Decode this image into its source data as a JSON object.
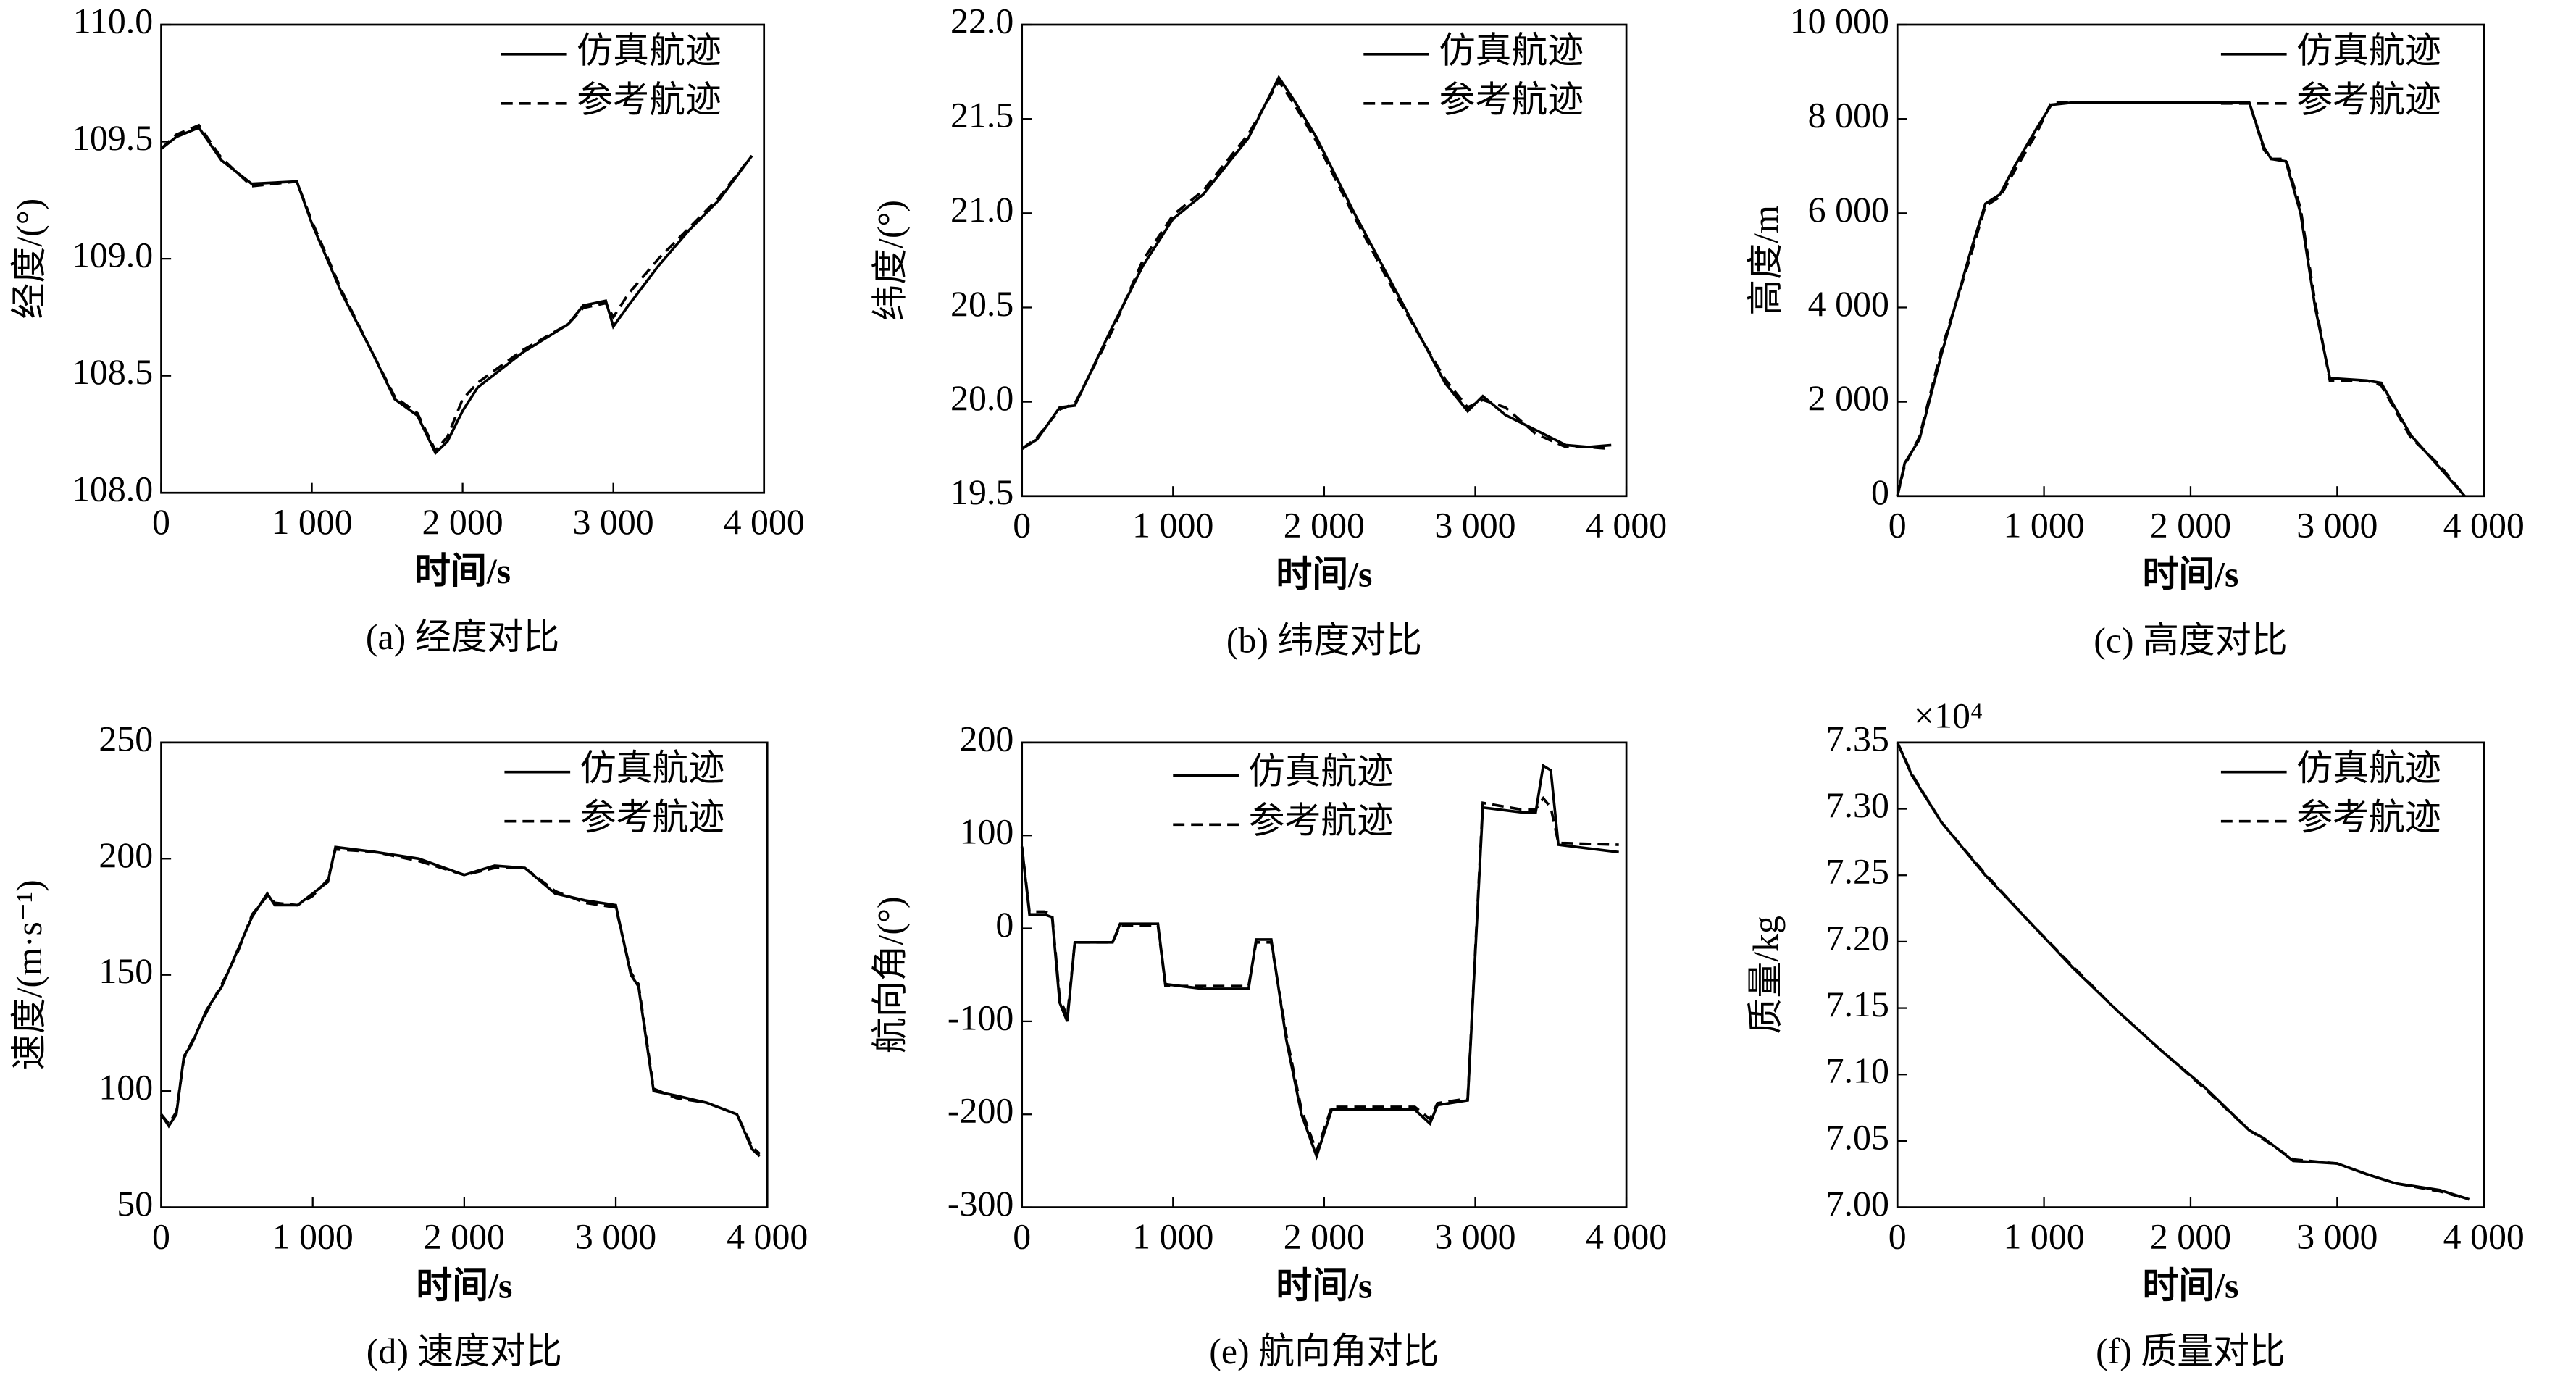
{
  "chart_data": [
    {
      "type": "line",
      "title": "(a) 经度对比",
      "xlabel": "时间/s",
      "ylabel": "经度/(°)",
      "legend": "upper right",
      "x": [
        0,
        100,
        250,
        400,
        600,
        900,
        1000,
        1200,
        1400,
        1550,
        1700,
        1820,
        1900,
        2000,
        2100,
        2400,
        2700,
        2800,
        2950,
        3000,
        3100,
        3300,
        3500,
        3700,
        3920
      ],
      "series": [
        {
          "name": "仿真航迹",
          "color": "#000000",
          "linestyle": "solid",
          "values": [
            109.47,
            109.52,
            109.56,
            109.42,
            109.32,
            109.33,
            109.15,
            108.85,
            108.6,
            108.4,
            108.33,
            108.17,
            108.22,
            108.35,
            108.45,
            108.6,
            108.72,
            108.8,
            108.82,
            108.71,
            108.8,
            108.97,
            109.12,
            109.25,
            109.44
          ]
        },
        {
          "name": "参考航迹",
          "color": "#000000",
          "linestyle": "dashed",
          "values": [
            109.47,
            109.53,
            109.57,
            109.43,
            109.31,
            109.33,
            109.16,
            108.86,
            108.6,
            108.41,
            108.34,
            108.18,
            108.24,
            108.4,
            108.47,
            108.61,
            108.72,
            108.79,
            108.81,
            108.75,
            108.85,
            109.0,
            109.13,
            109.26,
            109.44
          ]
        }
      ],
      "xlim": [
        0,
        4000
      ],
      "xticks": [
        0,
        {
          "value": 1000,
          "label": "1 000"
        },
        {
          "value": 2000,
          "label": "2 000"
        },
        {
          "value": 3000,
          "label": "3 000"
        },
        {
          "value": 4000,
          "label": "4 000"
        }
      ],
      "ylim": [
        108,
        110
      ],
      "yticks": [
        {
          "value": 108,
          "label": "108.0"
        },
        108.5,
        {
          "value": 109,
          "label": "109.0"
        },
        109.5,
        {
          "value": 110,
          "label": "110.0"
        }
      ]
    },
    {
      "type": "line",
      "title": "(b) 纬度对比",
      "xlabel": "时间/s",
      "ylabel": "纬度/(°)",
      "legend": "upper right",
      "x": [
        0,
        100,
        250,
        350,
        600,
        800,
        1000,
        1200,
        1500,
        1700,
        1800,
        1950,
        2200,
        2500,
        2800,
        2950,
        3050,
        3200,
        3400,
        3600,
        3750,
        3900
      ],
      "series": [
        {
          "name": "仿真航迹",
          "color": "#000000",
          "linestyle": "solid",
          "values": [
            19.75,
            19.8,
            19.97,
            19.98,
            20.4,
            20.72,
            20.97,
            21.1,
            21.4,
            21.72,
            21.6,
            21.4,
            21.0,
            20.55,
            20.1,
            19.95,
            20.03,
            19.93,
            19.85,
            19.77,
            19.76,
            19.77
          ]
        },
        {
          "name": "参考航迹",
          "color": "#000000",
          "linestyle": "dashed",
          "values": [
            19.75,
            19.81,
            19.96,
            19.99,
            20.38,
            20.75,
            20.99,
            21.12,
            21.42,
            21.7,
            21.58,
            21.38,
            20.98,
            20.53,
            20.12,
            19.97,
            20.01,
            19.97,
            19.83,
            19.76,
            19.76,
            19.75
          ]
        }
      ],
      "xlim": [
        0,
        4000
      ],
      "xticks": [
        0,
        {
          "value": 1000,
          "label": "1 000"
        },
        {
          "value": 2000,
          "label": "2 000"
        },
        {
          "value": 3000,
          "label": "3 000"
        },
        {
          "value": 4000,
          "label": "4 000"
        }
      ],
      "ylim": [
        19.5,
        22
      ],
      "yticks": [
        19.5,
        {
          "value": 20,
          "label": "20.0"
        },
        20.5,
        {
          "value": 21,
          "label": "21.0"
        },
        21.5,
        {
          "value": 22,
          "label": "22.0"
        }
      ]
    },
    {
      "type": "line",
      "title": "(c) 高度对比",
      "xlabel": "时间/s",
      "ylabel": "高度/m",
      "legend": "upper right",
      "x": [
        0,
        50,
        150,
        300,
        500,
        600,
        700,
        800,
        950,
        1050,
        1200,
        2000,
        2400,
        2500,
        2550,
        2650,
        2750,
        2850,
        2950,
        3200,
        3300,
        3500,
        3700,
        3870
      ],
      "series": [
        {
          "name": "仿真航迹",
          "color": "#000000",
          "linestyle": "solid",
          "values": [
            0,
            700,
            1200,
            3000,
            5200,
            6200,
            6400,
            7000,
            7800,
            8300,
            8350,
            8350,
            8350,
            7400,
            7150,
            7100,
            6000,
            4000,
            2500,
            2450,
            2400,
            1300,
            600,
            0
          ]
        },
        {
          "name": "参考航迹",
          "color": "#000000",
          "linestyle": "dashed",
          "values": [
            0,
            650,
            1250,
            3100,
            5100,
            6150,
            6350,
            6900,
            7700,
            8350,
            8350,
            8350,
            8350,
            7350,
            7150,
            7150,
            6100,
            4100,
            2450,
            2450,
            2350,
            1250,
            650,
            0
          ]
        }
      ],
      "xlim": [
        0,
        4000
      ],
      "xticks": [
        0,
        {
          "value": 1000,
          "label": "1 000"
        },
        {
          "value": 2000,
          "label": "2 000"
        },
        {
          "value": 3000,
          "label": "3 000"
        },
        {
          "value": 4000,
          "label": "4 000"
        }
      ],
      "ylim": [
        0,
        10000
      ],
      "yticks": [
        0,
        {
          "value": 2000,
          "label": "2 000"
        },
        {
          "value": 4000,
          "label": "4 000"
        },
        {
          "value": 6000,
          "label": "6 000"
        },
        {
          "value": 8000,
          "label": "8 000"
        },
        {
          "value": 10000,
          "label": "10 000"
        }
      ]
    },
    {
      "type": "line",
      "title": "(d) 速度对比",
      "xlabel": "时间/s",
      "ylabel": "速度/(m·s⁻¹)",
      "legend": "upper right",
      "x": [
        0,
        50,
        100,
        150,
        200,
        300,
        400,
        500,
        600,
        700,
        750,
        900,
        1000,
        1100,
        1150,
        1400,
        1700,
        2000,
        2200,
        2400,
        2600,
        2800,
        3000,
        3100,
        3150,
        3250,
        3400,
        3600,
        3800,
        3900,
        3950
      ],
      "series": [
        {
          "name": "仿真航迹",
          "color": "#000000",
          "linestyle": "solid",
          "values": [
            90,
            85,
            90,
            115,
            120,
            135,
            145,
            160,
            175,
            185,
            180,
            180,
            185,
            190,
            205,
            203,
            200,
            193,
            197,
            196,
            185,
            182,
            180,
            150,
            145,
            100,
            98,
            95,
            90,
            75,
            72
          ]
        },
        {
          "name": "参考航迹",
          "color": "#000000",
          "linestyle": "dashed",
          "values": [
            90,
            86,
            91,
            114,
            121,
            134,
            146,
            159,
            176,
            184,
            181,
            180,
            184,
            191,
            204,
            203,
            199,
            193,
            196,
            196,
            186,
            181,
            179,
            151,
            146,
            101,
            97,
            95,
            90,
            76,
            73
          ]
        }
      ],
      "xlim": [
        0,
        4000
      ],
      "xticks": [
        0,
        {
          "value": 1000,
          "label": "1 000"
        },
        {
          "value": 2000,
          "label": "2 000"
        },
        {
          "value": 3000,
          "label": "3 000"
        },
        {
          "value": 4000,
          "label": "4 000"
        }
      ],
      "ylim": [
        50,
        250
      ],
      "yticks": [
        50,
        100,
        150,
        200,
        250
      ]
    },
    {
      "type": "line",
      "title": "(e) 航向角对比",
      "xlabel": "时间/s",
      "ylabel": "航向角/(°)",
      "legend": "upper center",
      "x": [
        0,
        50,
        150,
        200,
        250,
        300,
        350,
        600,
        650,
        900,
        950,
        1200,
        1500,
        1550,
        1650,
        1750,
        1850,
        1950,
        2050,
        2600,
        2700,
        2750,
        2950,
        3050,
        3300,
        3400,
        3450,
        3500,
        3550,
        3950
      ],
      "series": [
        {
          "name": "仿真航迹",
          "color": "#000000",
          "linestyle": "solid",
          "values": [
            88,
            15,
            15,
            12,
            -80,
            -100,
            -15,
            -15,
            5,
            5,
            -60,
            -65,
            -65,
            -12,
            -12,
            -120,
            -200,
            -245,
            -195,
            -195,
            -210,
            -190,
            -185,
            130,
            125,
            125,
            175,
            170,
            90,
            82
          ]
        },
        {
          "name": "参考航迹",
          "color": "#000000",
          "linestyle": "dashed",
          "values": [
            88,
            18,
            18,
            15,
            -75,
            -95,
            -15,
            -15,
            3,
            3,
            -62,
            -62,
            -62,
            -15,
            -15,
            -115,
            -195,
            -240,
            -192,
            -192,
            -205,
            -188,
            -183,
            135,
            128,
            128,
            140,
            130,
            92,
            90
          ]
        }
      ],
      "xlim": [
        0,
        4000
      ],
      "xticks": [
        0,
        {
          "value": 1000,
          "label": "1 000"
        },
        {
          "value": 2000,
          "label": "2 000"
        },
        {
          "value": 3000,
          "label": "3 000"
        },
        {
          "value": 4000,
          "label": "4 000"
        }
      ],
      "ylim": [
        -300,
        200
      ],
      "yticks": [
        -300,
        -200,
        -100,
        0,
        100,
        200
      ]
    },
    {
      "type": "line",
      "title": "(f) 质量对比",
      "xlabel": "时间/s",
      "ylabel": "质量/kg",
      "legend": "upper right",
      "annotation": "×10⁴",
      "x": [
        0,
        100,
        300,
        600,
        900,
        1200,
        1500,
        1800,
        2100,
        2400,
        2500,
        2700,
        3000,
        3200,
        3400,
        3700,
        3900
      ],
      "series": [
        {
          "name": "仿真航迹",
          "color": "#000000",
          "linestyle": "solid",
          "values": [
            7.35,
            7.325,
            7.29,
            7.25,
            7.215,
            7.18,
            7.148,
            7.118,
            7.09,
            7.058,
            7.052,
            7.035,
            7.033,
            7.025,
            7.018,
            7.013,
            7.006
          ]
        },
        {
          "name": "参考航迹",
          "color": "#000000",
          "linestyle": "dashed",
          "values": [
            7.35,
            7.326,
            7.29,
            7.251,
            7.215,
            7.181,
            7.148,
            7.118,
            7.089,
            7.058,
            7.051,
            7.036,
            7.033,
            7.025,
            7.018,
            7.012,
            7.006
          ]
        }
      ],
      "xlim": [
        0,
        4000
      ],
      "xticks": [
        0,
        {
          "value": 1000,
          "label": "1 000"
        },
        {
          "value": 2000,
          "label": "2 000"
        },
        {
          "value": 3000,
          "label": "3 000"
        },
        {
          "value": 4000,
          "label": "4 000"
        }
      ],
      "ylim": [
        7,
        7.35
      ],
      "yticks": [
        {
          "value": 7,
          "label": "7.00"
        },
        7.05,
        {
          "value": 7.1,
          "label": "7.10"
        },
        7.15,
        {
          "value": 7.2,
          "label": "7.20"
        },
        7.25,
        {
          "value": 7.3,
          "label": "7.30"
        },
        7.35
      ]
    }
  ]
}
